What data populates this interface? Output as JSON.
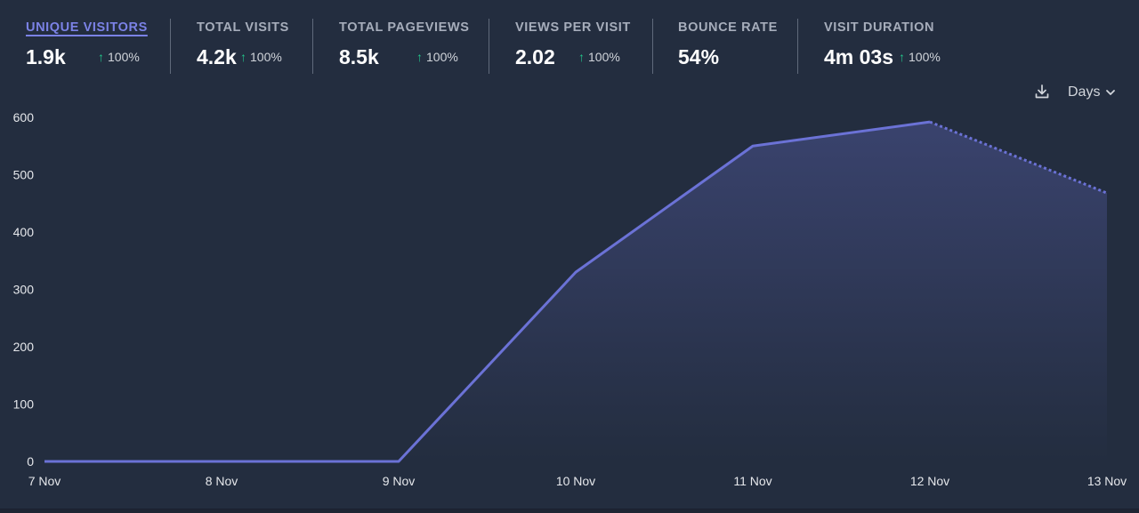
{
  "stats": [
    {
      "label": "UNIQUE VISITORS",
      "value": "1.9k",
      "change": "100%",
      "active": true
    },
    {
      "label": "TOTAL VISITS",
      "value": "4.2k",
      "change": "100%"
    },
    {
      "label": "TOTAL PAGEVIEWS",
      "value": "8.5k",
      "change": "100%"
    },
    {
      "label": "VIEWS PER VISIT",
      "value": "2.02",
      "change": "100%"
    },
    {
      "label": "BOUNCE RATE",
      "value": "54%"
    },
    {
      "label": "VISIT DURATION",
      "value": "4m 03s",
      "change": "100%"
    }
  ],
  "controls": {
    "download_icon": "download-icon",
    "interval_label": "Days",
    "interval_icon": "chevron-down-icon"
  },
  "colors": {
    "line": "#6b72d6",
    "area": "#3b4470",
    "positive_change": "#22c58b",
    "active_tab": "#7b82e6"
  },
  "chart_data": {
    "type": "area",
    "x": [
      "7 Nov",
      "8 Nov",
      "9 Nov",
      "10 Nov",
      "11 Nov",
      "12 Nov",
      "13 Nov"
    ],
    "series": [
      {
        "values": [
          0,
          0,
          0,
          330,
          550,
          592,
          468
        ]
      }
    ],
    "incomplete_from_index": 5,
    "y_ticks": [
      0,
      100,
      200,
      300,
      400,
      500,
      600
    ],
    "ylim": [
      0,
      600
    ],
    "grid": false,
    "title": "",
    "xlabel": "",
    "ylabel": ""
  }
}
